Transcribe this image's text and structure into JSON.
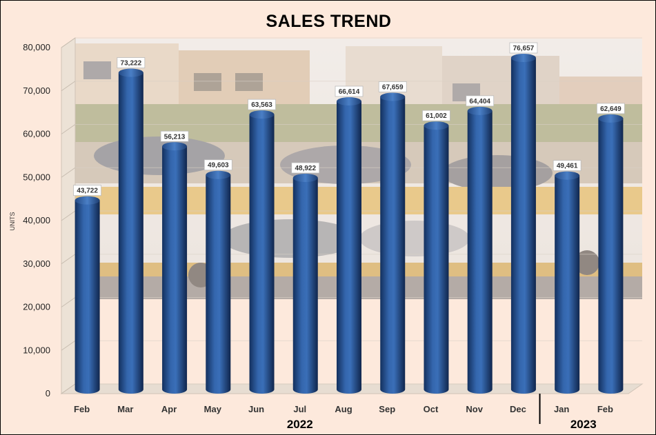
{
  "chart_data": {
    "type": "bar",
    "title": "SALES TREND",
    "ylabel": "UNITS",
    "xlabel": "",
    "ylim": [
      0,
      80000
    ],
    "yticks": [
      0,
      10000,
      20000,
      30000,
      40000,
      50000,
      60000,
      70000,
      80000
    ],
    "categories": [
      "Feb",
      "Mar",
      "Apr",
      "May",
      "Jun",
      "Jul",
      "Aug",
      "Sep",
      "Oct",
      "Nov",
      "Dec",
      "Jan",
      "Feb"
    ],
    "values": [
      43722,
      73222,
      56213,
      49603,
      63563,
      48922,
      66614,
      67659,
      61002,
      64404,
      76657,
      49461,
      62649
    ],
    "groups": [
      {
        "label": "2022",
        "count": 11
      },
      {
        "label": "2023",
        "count": 2
      }
    ],
    "bar_color": "#2a5396",
    "bar_shape": "cylinder",
    "background": "photo of car carrier truck in a street",
    "grid": true,
    "legend": "none"
  }
}
